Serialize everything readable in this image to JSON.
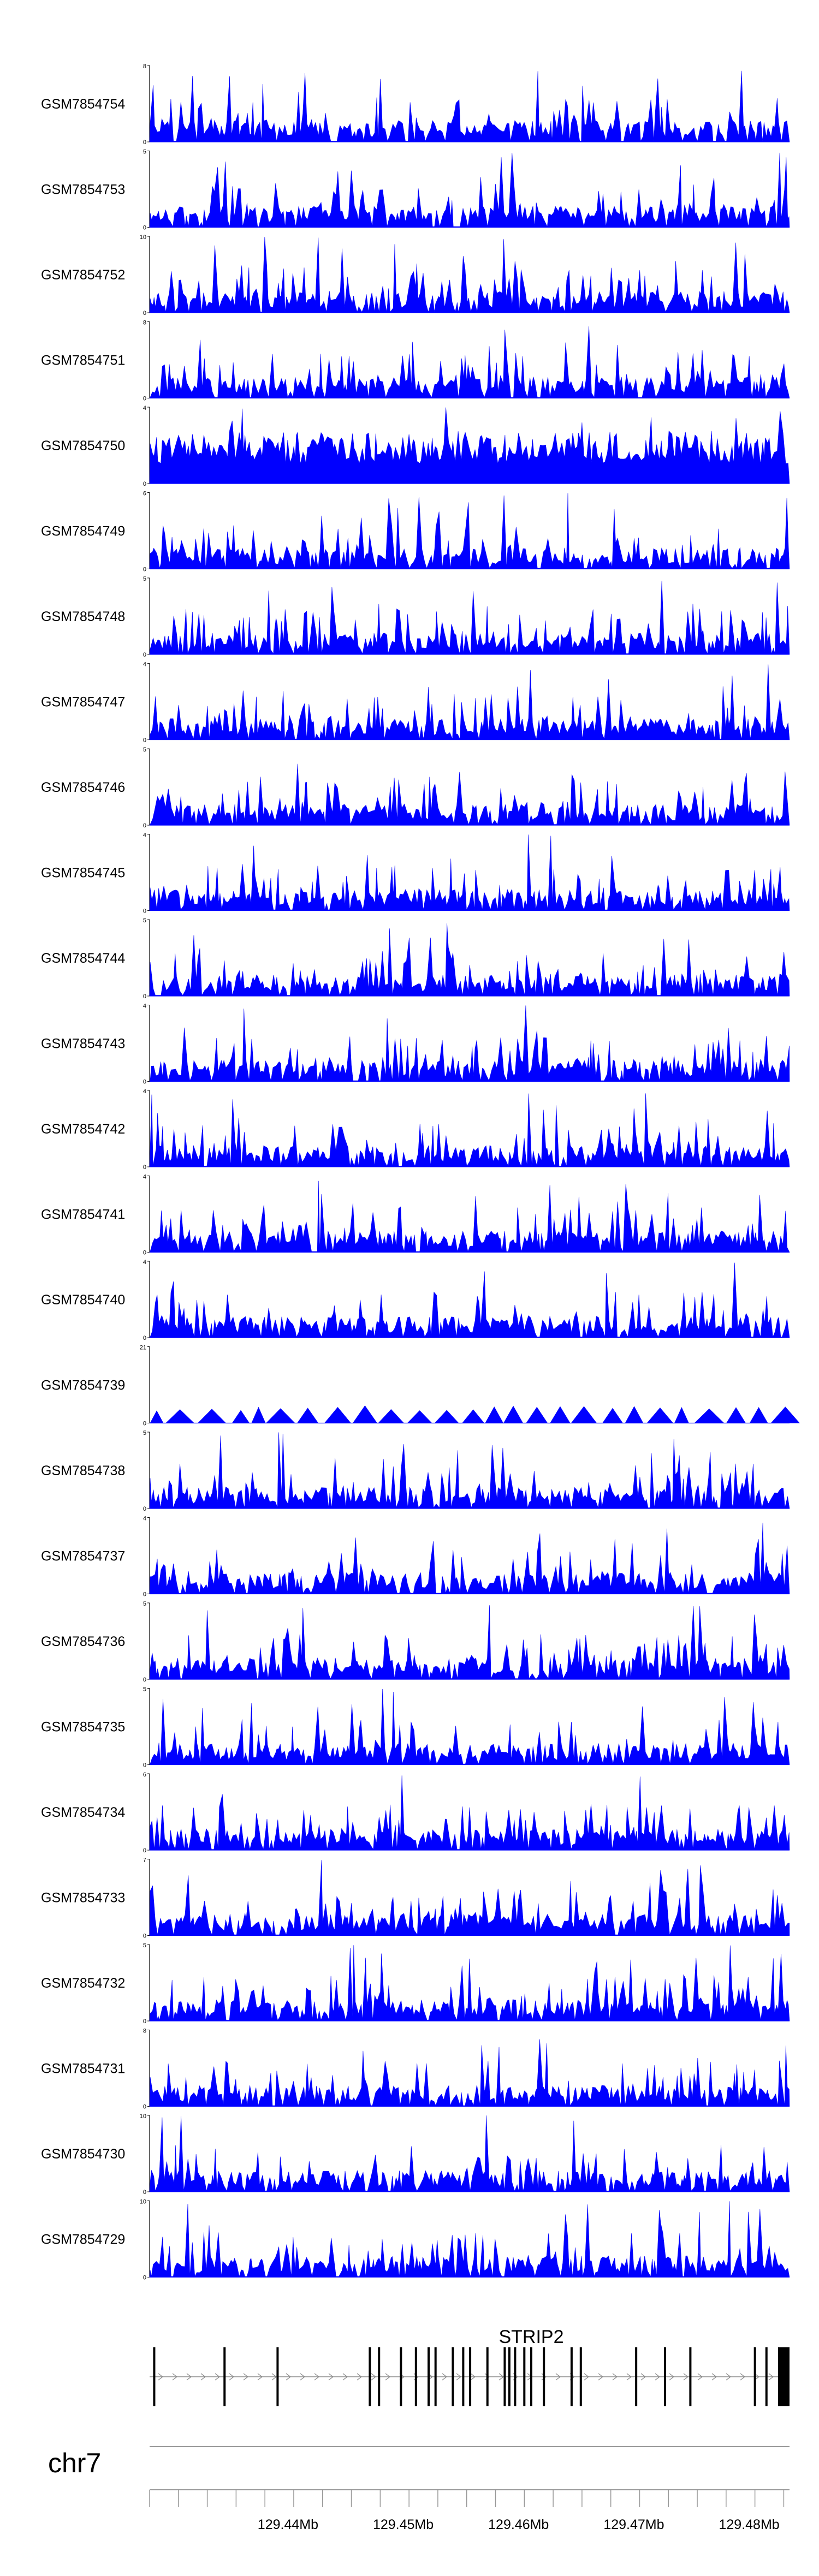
{
  "chart_data": {
    "type": "area",
    "chromosome": "chr7",
    "x_range": [
      129.428,
      129.4835
    ],
    "x_unit": "Mb",
    "color": "#0000ff",
    "tracks": [
      {
        "name": "GSM7854754",
        "ymax": "8",
        "ymin": "0"
      },
      {
        "name": "GSM7854753",
        "ymax": "5",
        "ymin": "0"
      },
      {
        "name": "GSM7854752",
        "ymax": "10",
        "ymin": "0"
      },
      {
        "name": "GSM7854751",
        "ymax": "8",
        "ymin": "0"
      },
      {
        "name": "GSM7854750",
        "ymax": "4",
        "ymin": "0"
      },
      {
        "name": "GSM7854749",
        "ymax": "6",
        "ymin": "0"
      },
      {
        "name": "GSM7854748",
        "ymax": "5",
        "ymin": "0"
      },
      {
        "name": "GSM7854747",
        "ymax": "4",
        "ymin": "0"
      },
      {
        "name": "GSM7854746",
        "ymax": "5",
        "ymin": "0"
      },
      {
        "name": "GSM7854745",
        "ymax": "4",
        "ymin": "0"
      },
      {
        "name": "GSM7854744",
        "ymax": "5",
        "ymin": "0"
      },
      {
        "name": "GSM7854743",
        "ymax": "4",
        "ymin": "0"
      },
      {
        "name": "GSM7854742",
        "ymax": "4",
        "ymin": "0"
      },
      {
        "name": "GSM7854741",
        "ymax": "4",
        "ymin": "0"
      },
      {
        "name": "GSM7854740",
        "ymax": "4",
        "ymin": "0"
      },
      {
        "name": "GSM7854739",
        "ymax": "21",
        "ymin": "0"
      },
      {
        "name": "GSM7854738",
        "ymax": "5",
        "ymin": "0"
      },
      {
        "name": "GSM7854737",
        "ymax": "4",
        "ymin": "0"
      },
      {
        "name": "GSM7854736",
        "ymax": "5",
        "ymin": "0"
      },
      {
        "name": "GSM7854735",
        "ymax": "5",
        "ymin": "0"
      },
      {
        "name": "GSM7854734",
        "ymax": "6",
        "ymin": "0"
      },
      {
        "name": "GSM7854733",
        "ymax": "7",
        "ymin": "0"
      },
      {
        "name": "GSM7854732",
        "ymax": "5",
        "ymin": "0"
      },
      {
        "name": "GSM7854731",
        "ymax": "8",
        "ymin": "0"
      },
      {
        "name": "GSM7854730",
        "ymax": "10",
        "ymin": "0"
      },
      {
        "name": "GSM7854729",
        "ymax": "10",
        "ymin": "0"
      }
    ],
    "gene": {
      "name": "STRIP2",
      "start": 129.428,
      "end": 129.4835,
      "exons": [
        129.4284,
        129.4345,
        129.4391,
        129.4471,
        129.4479,
        129.4498,
        129.4511,
        129.4522,
        129.4528,
        129.4543,
        129.4552,
        129.4558,
        129.4573,
        129.4588,
        129.4592,
        129.4597,
        129.4605,
        129.4611,
        129.4622,
        129.4646,
        129.4654,
        129.4702,
        129.4727,
        129.4749,
        129.4805,
        129.4815,
        129.4825
      ]
    },
    "x_ticks": [
      129.44,
      129.45,
      129.46,
      129.47,
      129.48
    ],
    "x_tick_labels": [
      "129.44Mb",
      "129.45Mb",
      "129.46Mb",
      "129.47Mb",
      "129.48Mb"
    ]
  }
}
